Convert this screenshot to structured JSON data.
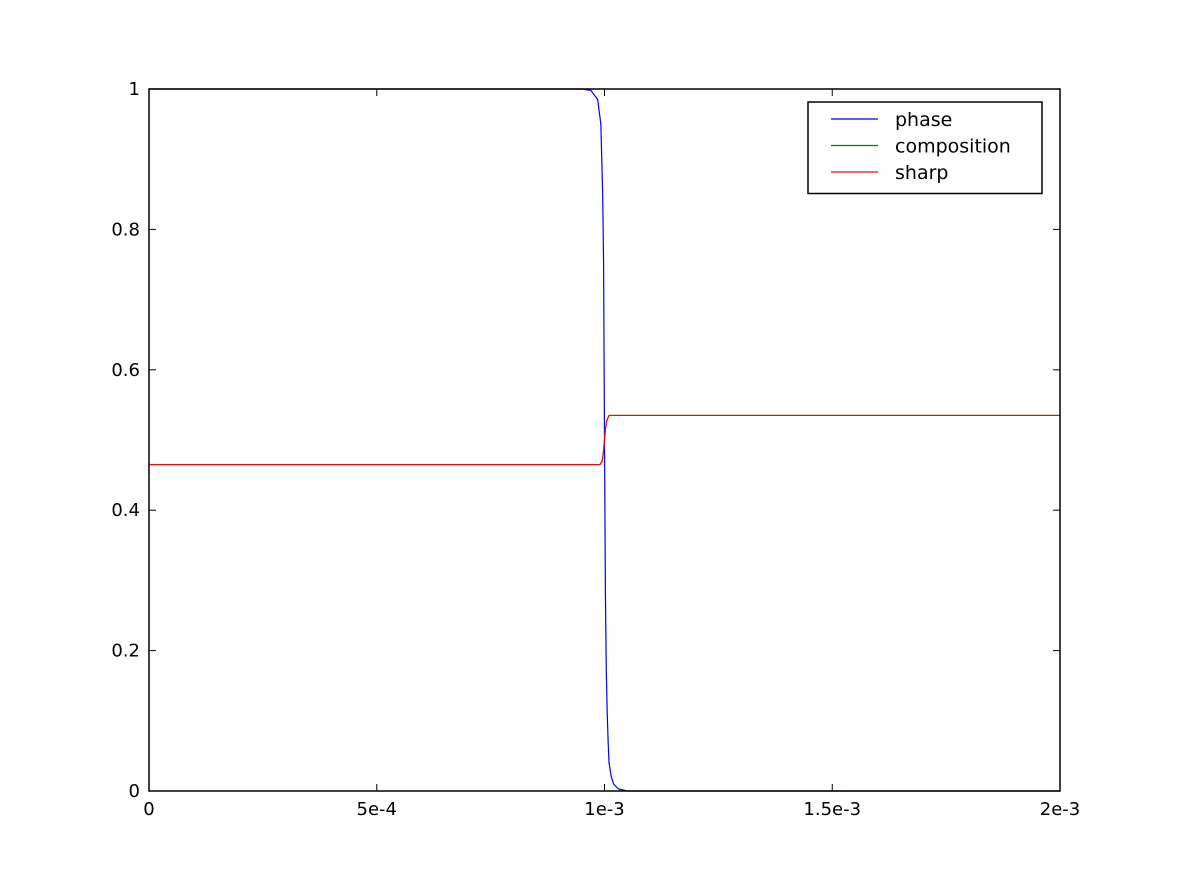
{
  "chart_data": {
    "type": "line",
    "title": "",
    "xlabel": "",
    "ylabel": "",
    "xlim": [
      0,
      0.002
    ],
    "ylim": [
      0,
      1
    ],
    "grid": false,
    "legend_position": "top-right",
    "x_ticks": [
      {
        "value": 0,
        "label": "0"
      },
      {
        "value": 0.0005,
        "label": "5e-4"
      },
      {
        "value": 0.001,
        "label": "1e-3"
      },
      {
        "value": 0.0015,
        "label": "1.5e-3"
      },
      {
        "value": 0.002,
        "label": "2e-3"
      }
    ],
    "y_ticks": [
      {
        "value": 0,
        "label": "0"
      },
      {
        "value": 0.2,
        "label": "0.2"
      },
      {
        "value": 0.4,
        "label": "0.4"
      },
      {
        "value": 0.6,
        "label": "0.6"
      },
      {
        "value": 0.8,
        "label": "0.8"
      },
      {
        "value": 1,
        "label": "1"
      }
    ],
    "series": [
      {
        "name": "phase",
        "color": "#0000ff",
        "x": [
          0,
          0.00095,
          0.00097,
          0.000985,
          0.000992,
          0.000996,
          0.000998,
          0.001,
          0.001002,
          0.001004,
          0.001006,
          0.001008,
          0.00101,
          0.001015,
          0.00102,
          0.00103,
          0.00105,
          0.002
        ],
        "y": [
          1,
          1,
          0.998,
          0.985,
          0.95,
          0.85,
          0.75,
          0.5,
          0.28,
          0.17,
          0.11,
          0.07,
          0.04,
          0.02,
          0.01,
          0.003,
          0,
          0
        ]
      },
      {
        "name": "composition",
        "color": "#008000",
        "x": [
          0,
          0.00099,
          0.000995,
          0.000998,
          0.001,
          0.001002,
          0.001005,
          0.00101,
          0.002
        ],
        "y": [
          0.465,
          0.465,
          0.47,
          0.485,
          0.5,
          0.515,
          0.528,
          0.535,
          0.535
        ]
      },
      {
        "name": "sharp",
        "color": "#ff0000",
        "x": [
          0,
          0.00099,
          0.000995,
          0.000998,
          0.001,
          0.001002,
          0.001005,
          0.00101,
          0.002
        ],
        "y": [
          0.465,
          0.465,
          0.47,
          0.485,
          0.5,
          0.515,
          0.528,
          0.535,
          0.535
        ]
      }
    ]
  }
}
